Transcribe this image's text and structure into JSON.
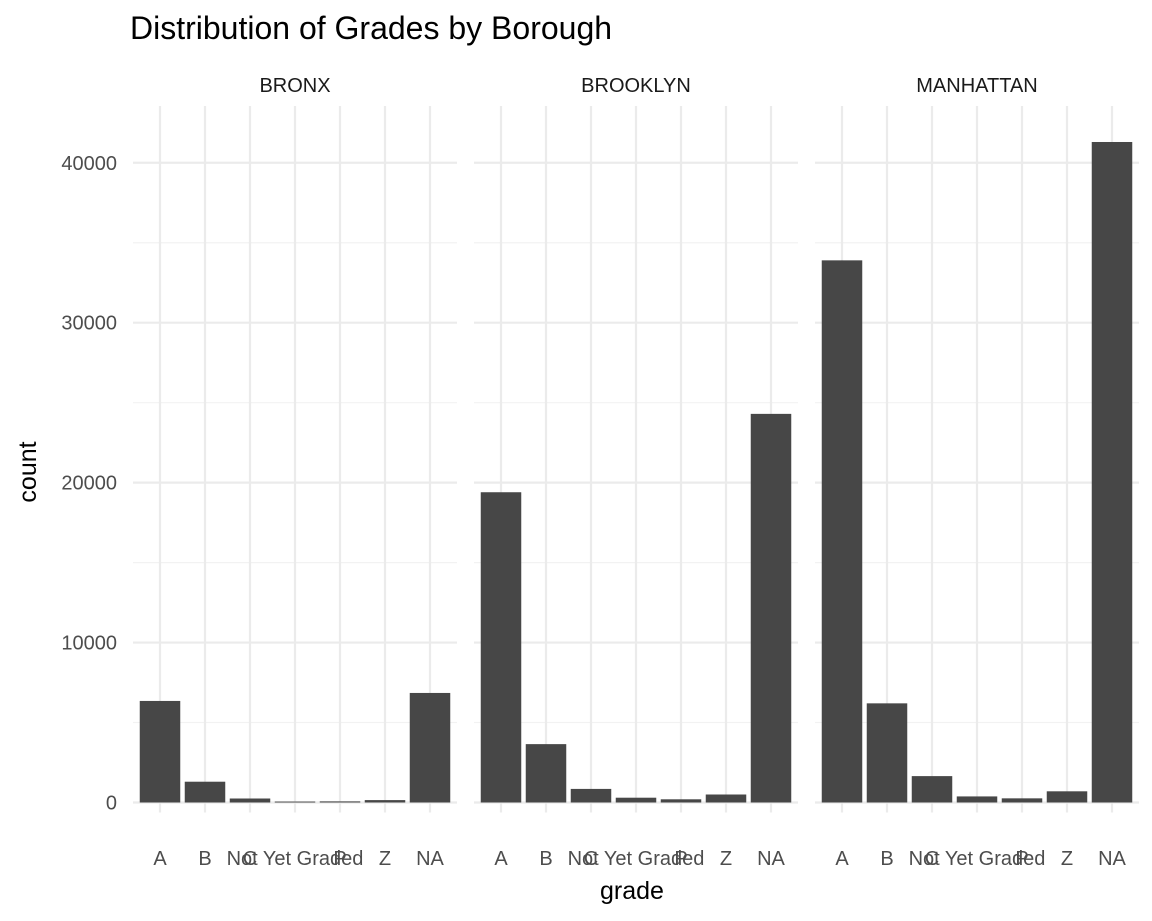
{
  "chart_data": {
    "type": "bar",
    "title": "Distribution of Grades by Borough",
    "xlabel": "grade",
    "ylabel": "count",
    "ylim": [
      0,
      42500
    ],
    "yticks": [
      0,
      10000,
      20000,
      30000,
      40000
    ],
    "ytick_labels": [
      "0",
      "10000",
      "20000",
      "30000",
      "40000"
    ],
    "grid": true,
    "facet_by": "borough",
    "categories": [
      "A",
      "B",
      "C",
      "Not Yet Graded",
      "P",
      "Z",
      "NA"
    ],
    "bar_color": "#474747",
    "panels": [
      {
        "name": "BRONX",
        "values": [
          6350,
          1300,
          250,
          60,
          70,
          150,
          6850
        ]
      },
      {
        "name": "BROOKLYN",
        "values": [
          19400,
          3650,
          850,
          300,
          200,
          500,
          24300
        ]
      },
      {
        "name": "MANHATTAN",
        "values": [
          33900,
          6200,
          1650,
          380,
          260,
          700,
          41300
        ]
      }
    ]
  }
}
